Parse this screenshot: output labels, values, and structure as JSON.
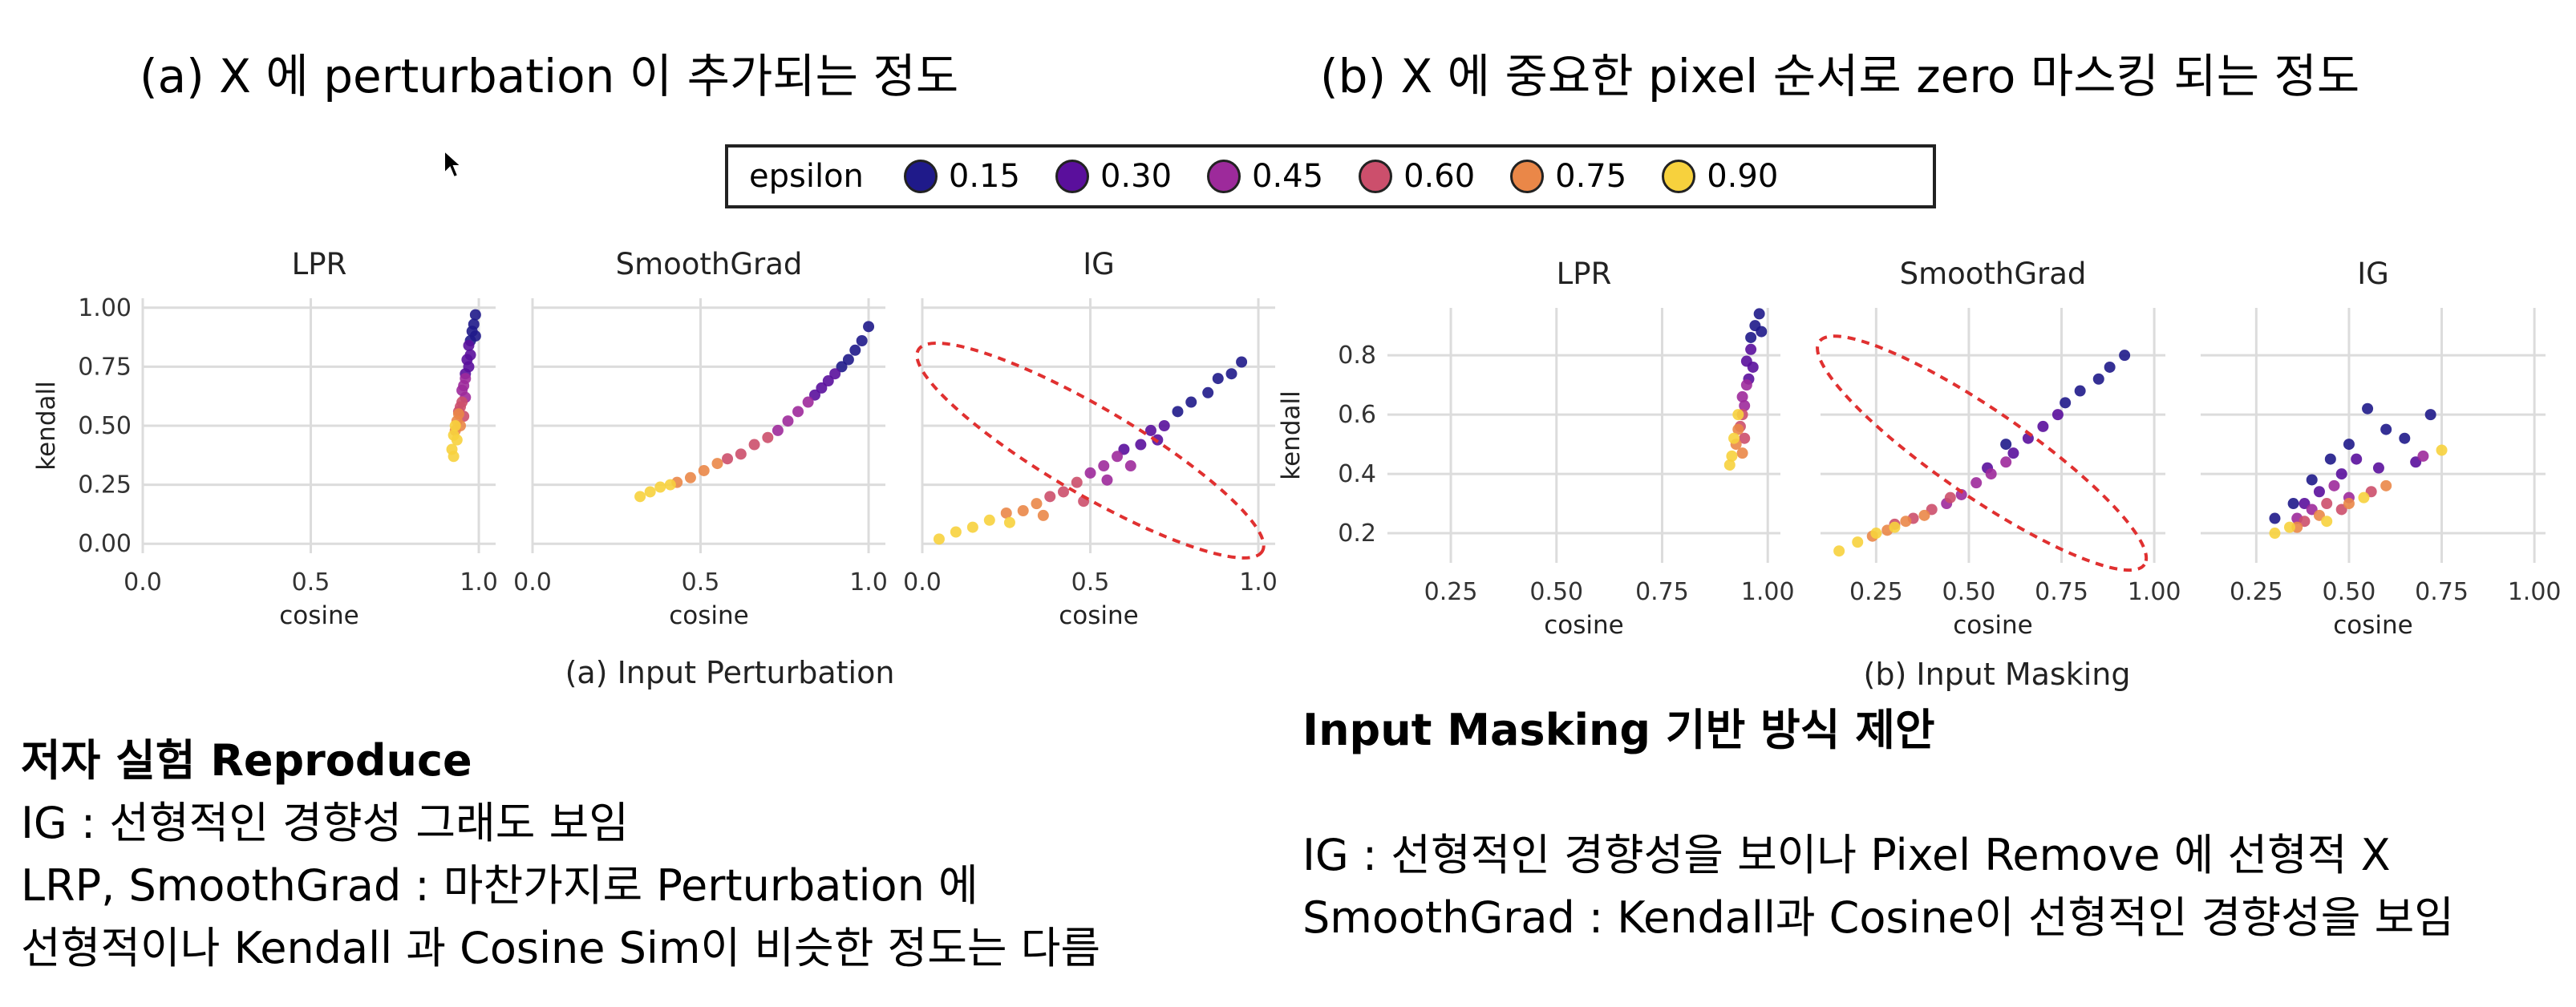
{
  "headings": {
    "a": "(a) X 에 perturbation 이 추가되는 정도",
    "b": "(b) X 에 중요한 pixel 순서로 zero 마스킹 되는 정도"
  },
  "legend": {
    "title": "epsilon",
    "items": [
      {
        "label": "0.15",
        "color": "#1f1a8a"
      },
      {
        "label": "0.30",
        "color": "#5a0f9c"
      },
      {
        "label": "0.45",
        "color": "#9d2a9b"
      },
      {
        "label": "0.60",
        "color": "#cc4f6c"
      },
      {
        "label": "0.75",
        "color": "#ea8748"
      },
      {
        "label": "0.90",
        "color": "#f7d13d"
      }
    ]
  },
  "captions": {
    "a": "(a) Input Perturbation",
    "b": "(b) Input Masking"
  },
  "chart_data": [
    {
      "type": "scatter",
      "group": "a",
      "title": "LPR",
      "xlabel": "cosine",
      "ylabel": "kendall",
      "xlim": [
        0,
        1.05
      ],
      "ylim": [
        -0.04,
        1.04
      ],
      "xticks": [
        "0.0",
        "0.5",
        "1.0"
      ],
      "xtick_values": [
        0,
        0.5,
        1.0
      ],
      "yticks": [
        "0.00",
        "0.25",
        "0.50",
        "0.75",
        "1.00"
      ],
      "ytick_values": [
        0,
        0.25,
        0.5,
        0.75,
        1.0
      ],
      "series": [
        {
          "epsilon": 0.15,
          "points": [
            [
              0.99,
              0.97
            ],
            [
              0.985,
              0.93
            ],
            [
              0.98,
              0.9
            ],
            [
              0.99,
              0.88
            ],
            [
              0.975,
              0.86
            ]
          ]
        },
        {
          "epsilon": 0.3,
          "points": [
            [
              0.97,
              0.84
            ],
            [
              0.975,
              0.8
            ],
            [
              0.965,
              0.78
            ],
            [
              0.97,
              0.75
            ],
            [
              0.96,
              0.72
            ]
          ]
        },
        {
          "epsilon": 0.45,
          "points": [
            [
              0.96,
              0.7
            ],
            [
              0.955,
              0.67
            ],
            [
              0.95,
              0.65
            ],
            [
              0.96,
              0.62
            ]
          ]
        },
        {
          "epsilon": 0.6,
          "points": [
            [
              0.95,
              0.6
            ],
            [
              0.945,
              0.58
            ],
            [
              0.94,
              0.56
            ],
            [
              0.955,
              0.54
            ]
          ]
        },
        {
          "epsilon": 0.75,
          "points": [
            [
              0.94,
              0.55
            ],
            [
              0.935,
              0.52
            ],
            [
              0.945,
              0.5
            ],
            [
              0.93,
              0.48
            ]
          ]
        },
        {
          "epsilon": 0.9,
          "points": [
            [
              0.93,
              0.5
            ],
            [
              0.925,
              0.46
            ],
            [
              0.935,
              0.44
            ],
            [
              0.92,
              0.4
            ],
            [
              0.925,
              0.37
            ]
          ]
        }
      ]
    },
    {
      "type": "scatter",
      "group": "a",
      "title": "SmoothGrad",
      "xlabel": "cosine",
      "ylabel": "",
      "xlim": [
        0,
        1.05
      ],
      "ylim": [
        -0.04,
        1.04
      ],
      "xticks": [
        "0.0",
        "0.5",
        "1.0"
      ],
      "xtick_values": [
        0,
        0.5,
        1.0
      ],
      "yticks": [],
      "ytick_values": [
        0,
        0.25,
        0.5,
        0.75,
        1.0
      ],
      "series": [
        {
          "epsilon": 0.15,
          "points": [
            [
              1.0,
              0.92
            ],
            [
              0.98,
              0.86
            ],
            [
              0.96,
              0.82
            ],
            [
              0.94,
              0.78
            ],
            [
              0.92,
              0.75
            ]
          ]
        },
        {
          "epsilon": 0.3,
          "points": [
            [
              0.9,
              0.72
            ],
            [
              0.88,
              0.69
            ],
            [
              0.86,
              0.66
            ],
            [
              0.84,
              0.63
            ]
          ]
        },
        {
          "epsilon": 0.45,
          "points": [
            [
              0.82,
              0.6
            ],
            [
              0.79,
              0.56
            ],
            [
              0.76,
              0.52
            ],
            [
              0.73,
              0.48
            ]
          ]
        },
        {
          "epsilon": 0.6,
          "points": [
            [
              0.7,
              0.45
            ],
            [
              0.66,
              0.42
            ],
            [
              0.62,
              0.38
            ],
            [
              0.58,
              0.36
            ]
          ]
        },
        {
          "epsilon": 0.75,
          "points": [
            [
              0.55,
              0.34
            ],
            [
              0.51,
              0.31
            ],
            [
              0.47,
              0.28
            ],
            [
              0.43,
              0.26
            ]
          ]
        },
        {
          "epsilon": 0.9,
          "points": [
            [
              0.41,
              0.25
            ],
            [
              0.38,
              0.24
            ],
            [
              0.35,
              0.22
            ],
            [
              0.32,
              0.2
            ]
          ]
        }
      ]
    },
    {
      "type": "scatter",
      "group": "a",
      "title": "IG",
      "xlabel": "cosine",
      "ylabel": "",
      "xlim": [
        0,
        1.05
      ],
      "ylim": [
        -0.04,
        1.04
      ],
      "xticks": [
        "0.0",
        "0.5",
        "1.0"
      ],
      "xtick_values": [
        0,
        0.5,
        1.0
      ],
      "yticks": [],
      "ytick_values": [
        0,
        0.25,
        0.5,
        0.75,
        1.0
      ],
      "series": [
        {
          "epsilon": 0.15,
          "points": [
            [
              0.95,
              0.77
            ],
            [
              0.92,
              0.72
            ],
            [
              0.88,
              0.7
            ],
            [
              0.85,
              0.64
            ],
            [
              0.8,
              0.6
            ],
            [
              0.76,
              0.56
            ]
          ]
        },
        {
          "epsilon": 0.3,
          "points": [
            [
              0.72,
              0.5
            ],
            [
              0.68,
              0.48
            ],
            [
              0.65,
              0.42
            ],
            [
              0.6,
              0.4
            ],
            [
              0.7,
              0.44
            ]
          ]
        },
        {
          "epsilon": 0.45,
          "points": [
            [
              0.58,
              0.37
            ],
            [
              0.54,
              0.33
            ],
            [
              0.5,
              0.3
            ],
            [
              0.55,
              0.27
            ],
            [
              0.62,
              0.33
            ]
          ]
        },
        {
          "epsilon": 0.6,
          "points": [
            [
              0.46,
              0.26
            ],
            [
              0.42,
              0.22
            ],
            [
              0.38,
              0.2
            ],
            [
              0.48,
              0.18
            ]
          ]
        },
        {
          "epsilon": 0.75,
          "points": [
            [
              0.34,
              0.17
            ],
            [
              0.3,
              0.14
            ],
            [
              0.25,
              0.13
            ],
            [
              0.36,
              0.12
            ]
          ]
        },
        {
          "epsilon": 0.9,
          "points": [
            [
              0.2,
              0.1
            ],
            [
              0.15,
              0.07
            ],
            [
              0.1,
              0.05
            ],
            [
              0.05,
              0.02
            ],
            [
              0.26,
              0.09
            ]
          ]
        }
      ],
      "annotation": "red dashed ellipse around the points"
    },
    {
      "type": "scatter",
      "group": "b",
      "title": "LPR",
      "xlabel": "cosine",
      "ylabel": "kendall",
      "xlim": [
        0.1,
        1.03
      ],
      "ylim": [
        0.1,
        0.96
      ],
      "xticks": [
        "0.25",
        "0.50",
        "0.75",
        "1.00"
      ],
      "xtick_values": [
        0.25,
        0.5,
        0.75,
        1.0
      ],
      "yticks": [
        "0.2",
        "0.4",
        "0.6",
        "0.8"
      ],
      "ytick_values": [
        0.2,
        0.4,
        0.6,
        0.8
      ],
      "series": [
        {
          "epsilon": 0.15,
          "points": [
            [
              0.98,
              0.94
            ],
            [
              0.97,
              0.9
            ],
            [
              0.985,
              0.88
            ],
            [
              0.96,
              0.86
            ]
          ]
        },
        {
          "epsilon": 0.3,
          "points": [
            [
              0.96,
              0.82
            ],
            [
              0.95,
              0.78
            ],
            [
              0.965,
              0.76
            ],
            [
              0.955,
              0.72
            ]
          ]
        },
        {
          "epsilon": 0.45,
          "points": [
            [
              0.95,
              0.7
            ],
            [
              0.94,
              0.66
            ],
            [
              0.945,
              0.63
            ]
          ]
        },
        {
          "epsilon": 0.6,
          "points": [
            [
              0.94,
              0.6
            ],
            [
              0.935,
              0.56
            ],
            [
              0.945,
              0.52
            ]
          ]
        },
        {
          "epsilon": 0.75,
          "points": [
            [
              0.93,
              0.55
            ],
            [
              0.925,
              0.5
            ],
            [
              0.94,
              0.47
            ]
          ]
        },
        {
          "epsilon": 0.9,
          "points": [
            [
              0.93,
              0.6
            ],
            [
              0.92,
              0.52
            ],
            [
              0.915,
              0.46
            ],
            [
              0.91,
              0.43
            ]
          ]
        }
      ]
    },
    {
      "type": "scatter",
      "group": "b",
      "title": "SmoothGrad",
      "xlabel": "cosine",
      "ylabel": "",
      "xlim": [
        0.1,
        1.03
      ],
      "ylim": [
        0.1,
        0.96
      ],
      "xticks": [
        "0.25",
        "0.50",
        "0.75",
        "1.00"
      ],
      "xtick_values": [
        0.25,
        0.5,
        0.75,
        1.0
      ],
      "yticks": [],
      "ytick_values": [
        0.2,
        0.4,
        0.6,
        0.8
      ],
      "series": [
        {
          "epsilon": 0.15,
          "points": [
            [
              0.92,
              0.8
            ],
            [
              0.88,
              0.76
            ],
            [
              0.85,
              0.72
            ],
            [
              0.8,
              0.68
            ],
            [
              0.76,
              0.64
            ],
            [
              0.6,
              0.5
            ]
          ]
        },
        {
          "epsilon": 0.3,
          "points": [
            [
              0.74,
              0.6
            ],
            [
              0.7,
              0.56
            ],
            [
              0.66,
              0.52
            ],
            [
              0.62,
              0.47
            ],
            [
              0.55,
              0.42
            ]
          ]
        },
        {
          "epsilon": 0.45,
          "points": [
            [
              0.6,
              0.44
            ],
            [
              0.56,
              0.4
            ],
            [
              0.52,
              0.37
            ],
            [
              0.48,
              0.33
            ],
            [
              0.44,
              0.3
            ]
          ]
        },
        {
          "epsilon": 0.6,
          "points": [
            [
              0.45,
              0.32
            ],
            [
              0.4,
              0.28
            ],
            [
              0.35,
              0.25
            ],
            [
              0.3,
              0.23
            ]
          ]
        },
        {
          "epsilon": 0.75,
          "points": [
            [
              0.38,
              0.26
            ],
            [
              0.33,
              0.24
            ],
            [
              0.28,
              0.21
            ],
            [
              0.24,
              0.19
            ]
          ]
        },
        {
          "epsilon": 0.9,
          "points": [
            [
              0.3,
              0.22
            ],
            [
              0.25,
              0.2
            ],
            [
              0.2,
              0.17
            ],
            [
              0.15,
              0.14
            ]
          ]
        }
      ],
      "annotation": "red dashed ellipse around the points"
    },
    {
      "type": "scatter",
      "group": "b",
      "title": "IG",
      "xlabel": "cosine",
      "ylabel": "",
      "xlim": [
        0.1,
        1.03
      ],
      "ylim": [
        0.1,
        0.96
      ],
      "xticks": [
        "0.25",
        "0.50",
        "0.75",
        "1.00"
      ],
      "xtick_values": [
        0.25,
        0.5,
        0.75,
        1.0
      ],
      "yticks": [],
      "ytick_values": [
        0.2,
        0.4,
        0.6,
        0.8
      ],
      "series": [
        {
          "epsilon": 0.15,
          "points": [
            [
              0.55,
              0.62
            ],
            [
              0.5,
              0.5
            ],
            [
              0.6,
              0.55
            ],
            [
              0.45,
              0.45
            ],
            [
              0.4,
              0.38
            ],
            [
              0.65,
              0.52
            ],
            [
              0.72,
              0.6
            ],
            [
              0.35,
              0.3
            ],
            [
              0.3,
              0.25
            ]
          ]
        },
        {
          "epsilon": 0.3,
          "points": [
            [
              0.48,
              0.4
            ],
            [
              0.52,
              0.45
            ],
            [
              0.42,
              0.34
            ],
            [
              0.38,
              0.3
            ],
            [
              0.58,
              0.42
            ],
            [
              0.68,
              0.44
            ]
          ]
        },
        {
          "epsilon": 0.45,
          "points": [
            [
              0.46,
              0.36
            ],
            [
              0.5,
              0.32
            ],
            [
              0.4,
              0.28
            ],
            [
              0.36,
              0.25
            ],
            [
              0.7,
              0.46
            ]
          ]
        },
        {
          "epsilon": 0.6,
          "points": [
            [
              0.44,
              0.3
            ],
            [
              0.48,
              0.28
            ],
            [
              0.38,
              0.24
            ],
            [
              0.56,
              0.34
            ]
          ]
        },
        {
          "epsilon": 0.75,
          "points": [
            [
              0.42,
              0.26
            ],
            [
              0.5,
              0.3
            ],
            [
              0.36,
              0.22
            ],
            [
              0.6,
              0.36
            ]
          ]
        },
        {
          "epsilon": 0.9,
          "points": [
            [
              0.3,
              0.2
            ],
            [
              0.34,
              0.22
            ],
            [
              0.44,
              0.24
            ],
            [
              0.54,
              0.32
            ],
            [
              0.75,
              0.48
            ]
          ]
        }
      ]
    }
  ],
  "notes_left": {
    "title": "저자 실험 Reproduce",
    "lines": [
      "IG : 선형적인 경향성 그래도 보임",
      "LRP, SmoothGrad : 마찬가지로 Perturbation 에",
      "선형적이나 Kendall 과 Cosine Sim이 비슷한 정도는 다름"
    ]
  },
  "notes_right": {
    "title": "Input Masking 기반 방식 제안",
    "lines": [
      "IG : 선형적인 경향성을 보이나 Pixel Remove 에 선형적 X",
      "SmoothGrad : Kendall과 Cosine이 선형적인 경향성을 보임"
    ]
  }
}
